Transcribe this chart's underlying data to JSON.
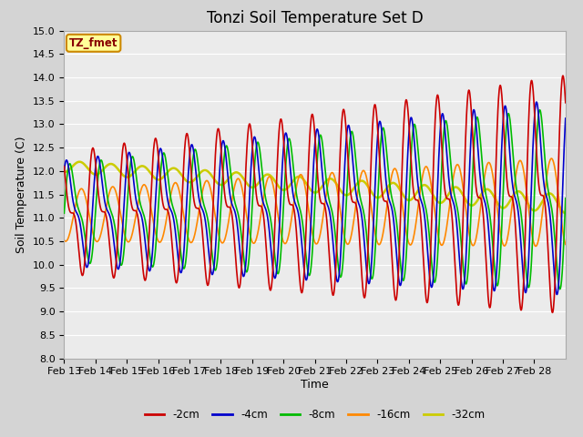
{
  "title": "Tonzi Soil Temperature Set D",
  "xlabel": "Time",
  "ylabel": "Soil Temperature (C)",
  "ylim": [
    8.0,
    15.0
  ],
  "yticks": [
    8.0,
    8.5,
    9.0,
    9.5,
    10.0,
    10.5,
    11.0,
    11.5,
    12.0,
    12.5,
    13.0,
    13.5,
    14.0,
    14.5,
    15.0
  ],
  "xtick_labels": [
    "Feb 13",
    "Feb 14",
    "Feb 15",
    "Feb 16",
    "Feb 17",
    "Feb 18",
    "Feb 19",
    "Feb 20",
    "Feb 21",
    "Feb 22",
    "Feb 23",
    "Feb 24",
    "Feb 25",
    "Feb 26",
    "Feb 27",
    "Feb 28"
  ],
  "series_colors": [
    "#cc0000",
    "#0000cc",
    "#00bb00",
    "#ff8800",
    "#cccc00"
  ],
  "series_lw": [
    1.2,
    1.2,
    1.2,
    1.2,
    1.8
  ],
  "legend_labels": [
    "-2cm",
    "-4cm",
    "-8cm",
    "-16cm",
    "-32cm"
  ],
  "annotation_text": "TZ_fmet",
  "annotation_fg": "#880000",
  "annotation_bg": "#ffff99",
  "annotation_border": "#cc8800",
  "fig_bg": "#d4d4d4",
  "plot_bg": "#ebebeb",
  "grid_color": "#ffffff",
  "title_fontsize": 12,
  "axis_label_fontsize": 9,
  "tick_fontsize": 8
}
